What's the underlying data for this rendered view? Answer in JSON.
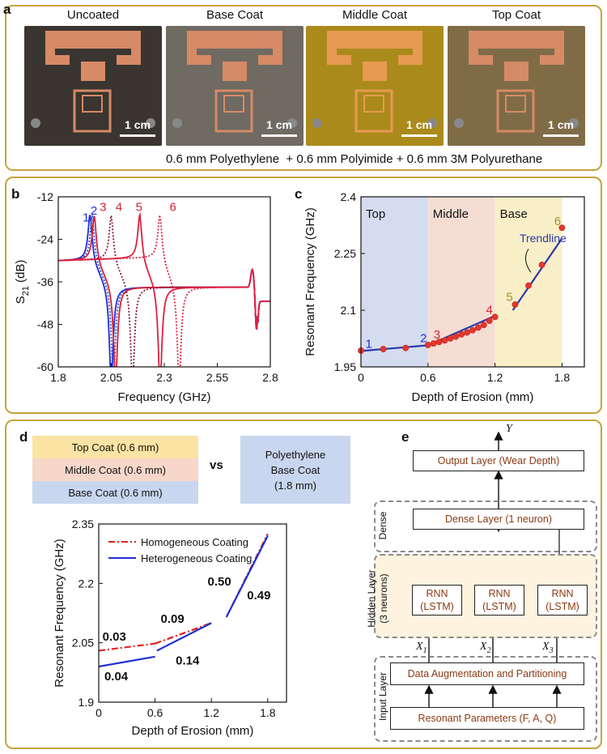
{
  "panel_a": {
    "label": "a",
    "photos": [
      {
        "title": "Uncoated",
        "scale": "1 cm",
        "tint": "#3a3530"
      },
      {
        "title": "Base Coat",
        "scale": "1 cm",
        "tint": "#6f6a62"
      },
      {
        "title": "Middle Coat",
        "scale": "1 cm",
        "tint": "#8a7420"
      },
      {
        "title": "Top Coat",
        "scale": "1 cm",
        "tint": "#6d6043"
      }
    ],
    "caption": "0.6 mm Polyethylene  + 0.6 mm Polyimide + 0.6 mm 3M Polyurethane"
  },
  "panel_b": {
    "label": "b"
  },
  "panel_c": {
    "label": "c"
  },
  "panel_d": {
    "label": "d",
    "coats": [
      "Top Coat (0.6 mm)",
      "Middle Coat (0.6 mm)",
      "Base Coat (0.6 mm)"
    ],
    "vs": "vs",
    "poly_box": [
      "Polyethylene",
      "Base Coat",
      "(1.8 mm)"
    ]
  },
  "panel_e": {
    "label": "e",
    "output_var": "Y",
    "output_layer": "Output Layer (Wear Depth)",
    "dense_layer": "Dense Layer (1 neuron)",
    "dense_group": "Dense",
    "hidden_group": "Hidden Layer",
    "hidden_sub": "(3 neurons)",
    "rnn_cells": [
      [
        "RNN",
        "(LSTM)"
      ],
      [
        "RNN",
        "(LSTM)"
      ],
      [
        "RNN",
        "(LSTM)"
      ]
    ],
    "x_labels": [
      "X",
      "X",
      "X"
    ],
    "x_subs": [
      "1",
      "2",
      "3"
    ],
    "augment_layer": "Data Augmentation and Partitioning",
    "input_group": "Input Layer",
    "resonant_params": "Resonant Parameters (F, A, Q)"
  },
  "chart_data": [
    {
      "type": "line",
      "id": "b",
      "title": "",
      "xlabel": "Frequency (GHz)",
      "ylabel": "S21 (dB)",
      "ylabel_main": "S",
      "ylabel_sub": "21",
      "ylabel_rest": " (dB)",
      "xlim": [
        1.8,
        2.8
      ],
      "ylim": [
        -60,
        -12
      ],
      "xticks": [
        "1.8",
        "2.05",
        "2.3",
        "2.55",
        "2.8"
      ],
      "yticks": [
        "-12",
        "-24",
        "-36",
        "-48",
        "-60"
      ],
      "series": [
        {
          "name": "1",
          "color": "#1f2fd6",
          "style": "solid",
          "res": 1.95,
          "anti": 2.05,
          "peak": -17
        },
        {
          "name": "2",
          "color": "#3050e0",
          "style": "dotted",
          "res": 1.96,
          "anti": 2.06,
          "peak": -17.5
        },
        {
          "name": "3",
          "color": "#d62035",
          "style": "solid",
          "res": 1.97,
          "anti": 2.07,
          "peak": -17.5
        },
        {
          "name": "4",
          "color": "#8a1a3a",
          "style": "dotted",
          "res": 2.05,
          "anti": 2.15,
          "peak": -17.5
        },
        {
          "name": "5",
          "color": "#e02040",
          "style": "solid",
          "res": 2.185,
          "anti": 2.28,
          "peak": -17.5
        },
        {
          "name": "6",
          "color": "#e02040",
          "style": "dotted",
          "res": 2.28,
          "anti": 2.37,
          "peak": -17.5
        }
      ],
      "labels": [
        {
          "text": "1",
          "color": "#1f2fd6",
          "x": 1.915,
          "y": -19
        },
        {
          "text": "2",
          "color": "#1f2fd6",
          "x": 1.952,
          "y": -17
        },
        {
          "text": "3",
          "color": "#d62035",
          "x": 1.995,
          "y": -16
        },
        {
          "text": "4",
          "color": "#d62035",
          "x": 2.07,
          "y": -16
        },
        {
          "text": "5",
          "color": "#d62035",
          "x": 2.165,
          "y": -16
        },
        {
          "text": "6",
          "color": "#d62035",
          "x": 2.325,
          "y": -16
        }
      ]
    },
    {
      "type": "scatter",
      "id": "c",
      "xlabel": "Depth of Erosion (mm)",
      "ylabel": "Resonant Frequency (GHz)",
      "xlim": [
        0,
        2.0
      ],
      "ylim": [
        1.95,
        2.4
      ],
      "xticks": [
        "0",
        "0.6",
        "1.2",
        "1.8"
      ],
      "yticks": [
        "1.95",
        "2.1",
        "2.25",
        "2.4"
      ],
      "regions": [
        {
          "name": "Top",
          "from": 0,
          "to": 0.6,
          "color": "#d4dcf0"
        },
        {
          "name": "Middle",
          "from": 0.6,
          "to": 1.2,
          "color": "#f6ddd4"
        },
        {
          "name": "Base",
          "from": 1.2,
          "to": 1.8,
          "color": "#f8efc8"
        }
      ],
      "x": [
        0,
        0.2,
        0.4,
        0.6,
        0.65,
        0.7,
        0.75,
        0.8,
        0.85,
        0.9,
        0.95,
        1.0,
        1.05,
        1.1,
        1.15,
        1.2,
        1.38,
        1.5,
        1.62,
        1.8
      ],
      "y": [
        1.993,
        1.997,
        2.0,
        2.008,
        2.012,
        2.016,
        2.02,
        2.025,
        2.03,
        2.036,
        2.041,
        2.047,
        2.054,
        2.061,
        2.072,
        2.082,
        2.115,
        2.165,
        2.22,
        2.318
      ],
      "trend_segments": [
        {
          "x": [
            0,
            0.6
          ],
          "y": [
            1.992,
            2.007
          ]
        },
        {
          "x": [
            0.6,
            1.2
          ],
          "y": [
            2.007,
            2.085
          ]
        },
        {
          "x": [
            1.36,
            1.8
          ],
          "y": [
            2.1,
            2.29
          ]
        }
      ],
      "annotations": [
        {
          "text": "1",
          "color": "#1f2fd6",
          "x": 0.04,
          "y": 2.0
        },
        {
          "text": "2",
          "color": "#1f2fd6",
          "x": 0.53,
          "y": 2.015
        },
        {
          "text": "3",
          "color": "#d62035",
          "x": 0.65,
          "y": 2.025
        },
        {
          "text": "4",
          "color": "#d62035",
          "x": 1.12,
          "y": 2.09
        },
        {
          "text": "5",
          "color": "#b08a2a",
          "x": 1.3,
          "y": 2.125
        },
        {
          "text": "6",
          "color": "#b08a2a",
          "x": 1.73,
          "y": 2.325
        }
      ],
      "trend_label": "Trendline"
    },
    {
      "type": "line",
      "id": "d",
      "xlabel": "Depth of Erosion (mm)",
      "ylabel": "Resonant Frequency (GHz)",
      "xlim": [
        0,
        2.0
      ],
      "ylim": [
        1.9,
        2.35
      ],
      "xticks": [
        "0",
        "0.6",
        "1.2",
        "1.8"
      ],
      "yticks": [
        "1.9",
        "2.05",
        "2.2",
        "2.35"
      ],
      "legend": [
        "Homogeneous Coating",
        "Heterogeneous Coating"
      ],
      "series": [
        {
          "name": "Homogeneous Coating",
          "color": "#e02020",
          "style": "dashdot",
          "segments": [
            {
              "x": [
                0,
                0.6
              ],
              "y": [
                2.03,
                2.048
              ]
            },
            {
              "x": [
                0.6,
                1.2
              ],
              "y": [
                2.048,
                2.1
              ]
            },
            {
              "x": [
                1.36,
                1.8
              ],
              "y": [
                2.115,
                2.325
              ]
            }
          ]
        },
        {
          "name": "Heterogeneous Coating",
          "color": "#1f2fd6",
          "style": "solid",
          "segments": [
            {
              "x": [
                0,
                0.6
              ],
              "y": [
                1.99,
                2.015
              ]
            },
            {
              "x": [
                0.62,
                1.2
              ],
              "y": [
                2.03,
                2.1
              ]
            },
            {
              "x": [
                1.36,
                1.8
              ],
              "y": [
                2.115,
                2.32
              ]
            }
          ]
        }
      ],
      "slope_labels": [
        {
          "text": "0.03",
          "x": 0.04,
          "y": 2.055
        },
        {
          "text": "0.09",
          "x": 0.66,
          "y": 2.1
        },
        {
          "text": "0.04",
          "x": 0.06,
          "y": 1.955
        },
        {
          "text": "0.14",
          "x": 0.82,
          "y": 1.995
        },
        {
          "text": "0.50",
          "x": 1.16,
          "y": 2.195
        },
        {
          "text": "0.49",
          "x": 1.58,
          "y": 2.16
        }
      ]
    }
  ]
}
